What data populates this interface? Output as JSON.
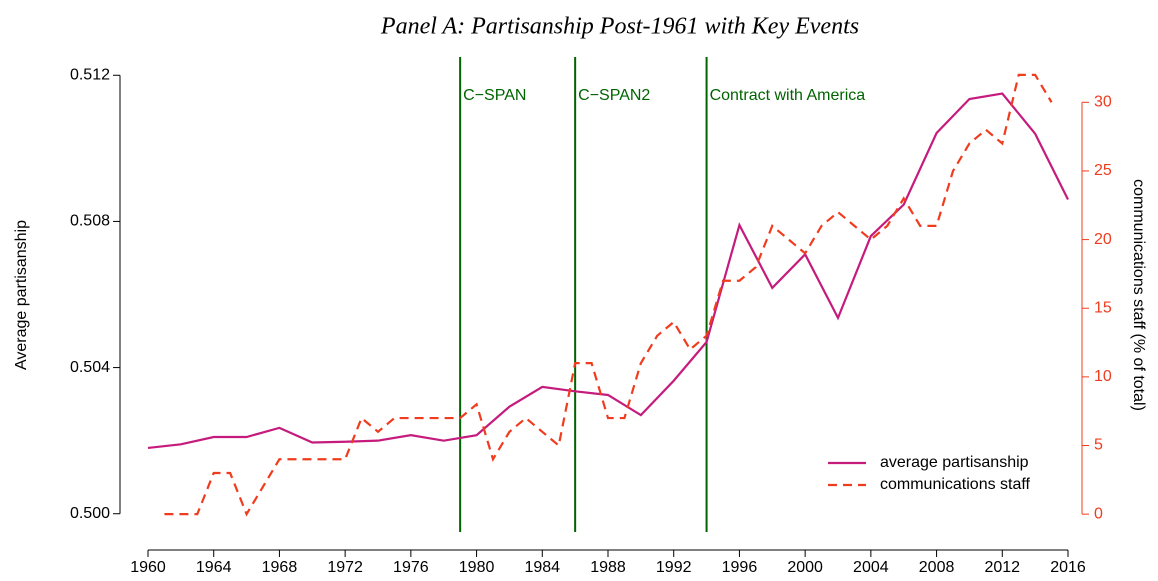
{
  "chart_data": {
    "type": "line",
    "title": "Panel A: Partisanship Post-1961 with Key Events",
    "y_label": "Average partisanship",
    "y2_label": "communications staff (% of total)",
    "xlim": [
      1960,
      2016
    ],
    "xticks": [
      1960,
      1964,
      1968,
      1972,
      1976,
      1980,
      1984,
      1988,
      1992,
      1996,
      2000,
      2004,
      2008,
      2012,
      2016
    ],
    "ylim": [
      0.4995,
      0.5125
    ],
    "yticks": [
      {
        "value": 0.5,
        "label": "0.500"
      },
      {
        "value": 0.504,
        "label": "0.504"
      },
      {
        "value": 0.508,
        "label": "0.508"
      },
      {
        "value": 0.512,
        "label": "0.512"
      }
    ],
    "y2lim": [
      -1.3,
      33.3
    ],
    "y2ticks": [
      0,
      5,
      10,
      15,
      20,
      25,
      30
    ],
    "y2_color": "#f03c1e",
    "legend": "bottom-right",
    "events": [
      {
        "x": 1979,
        "label": "C−SPAN"
      },
      {
        "x": 1986,
        "label": "C−SPAN2"
      },
      {
        "x": 1994,
        "label": "Contract with America"
      }
    ],
    "event_color": "#006400",
    "series": [
      {
        "name": "average partisanship",
        "color": "#c51b7d",
        "dashed": false,
        "x": [
          1960,
          1962,
          1964,
          1966,
          1968,
          1970,
          1972,
          1974,
          1976,
          1978,
          1980,
          1982,
          1984,
          1986,
          1988,
          1990,
          1992,
          1994,
          1996,
          1998,
          2000,
          2002,
          2004,
          2006,
          2008,
          2010,
          2012,
          2014,
          2016
        ],
        "values": [
          0.5018,
          0.5019,
          0.5021,
          0.5021,
          0.50235,
          0.50195,
          0.50197,
          0.502,
          0.50215,
          0.502,
          0.50215,
          0.50293,
          0.50347,
          0.50335,
          0.50325,
          0.5027,
          0.50364,
          0.5047,
          0.5079,
          0.50618,
          0.5071,
          0.50536,
          0.5076,
          0.50846,
          0.51042,
          0.51135,
          0.5115,
          0.5104,
          0.5086
        ]
      },
      {
        "name": "communications staff",
        "color": "#f03c1e",
        "dashed": true,
        "axis": "y2",
        "x": [
          1961,
          1962,
          1963,
          1964,
          1965,
          1966,
          1967,
          1968,
          1969,
          1970,
          1971,
          1972,
          1973,
          1974,
          1975,
          1976,
          1977,
          1978,
          1979,
          1980,
          1981,
          1982,
          1983,
          1984,
          1985,
          1986,
          1987,
          1988,
          1989,
          1990,
          1991,
          1992,
          1993,
          1994,
          1995,
          1996,
          1997,
          1998,
          1999,
          2000,
          2001,
          2002,
          2003,
          2004,
          2005,
          2006,
          2007,
          2008,
          2009,
          2010,
          2011,
          2012,
          2013,
          2014,
          2015
        ],
        "values": [
          0,
          0,
          0,
          3,
          3,
          0,
          2,
          4,
          4,
          4,
          4,
          4,
          7,
          6,
          7,
          7,
          7,
          7,
          7,
          8,
          4,
          6,
          7,
          6,
          5,
          11,
          11,
          7,
          7,
          11,
          13,
          14,
          12,
          13,
          17,
          17,
          18,
          21,
          20,
          19,
          21,
          22,
          21,
          20,
          21,
          23,
          21,
          21,
          25,
          27,
          28,
          27,
          32,
          32,
          30
        ]
      }
    ]
  }
}
